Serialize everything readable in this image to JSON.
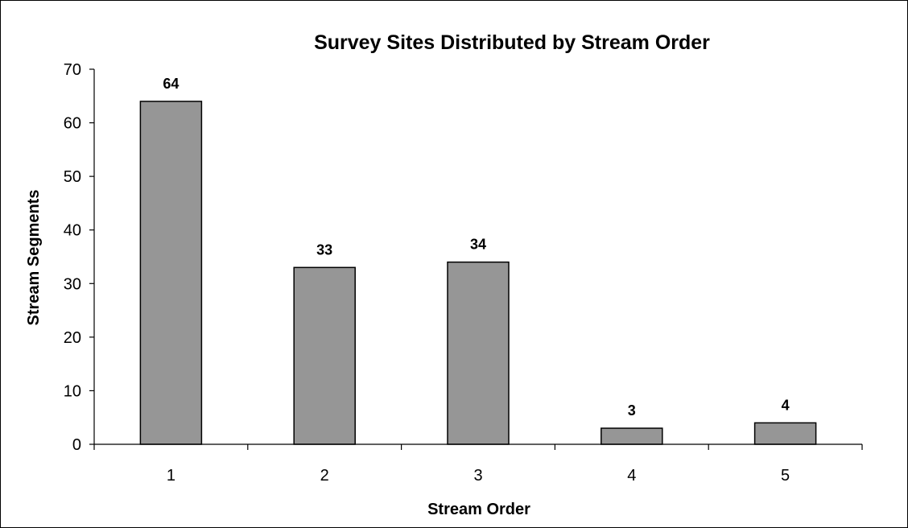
{
  "chart_data": {
    "type": "bar",
    "title": "Survey Sites Distributed by Stream Order",
    "xlabel": "Stream Order",
    "ylabel": "Stream Segments",
    "categories": [
      "1",
      "2",
      "3",
      "4",
      "5"
    ],
    "values": [
      64,
      33,
      34,
      3,
      4
    ],
    "data_labels": [
      "64",
      "33",
      "34",
      "3",
      "4"
    ],
    "ylim": [
      0,
      70
    ],
    "yticks": [
      0,
      10,
      20,
      30,
      40,
      50,
      60,
      70
    ],
    "grid": false,
    "legend": "none",
    "bar_color": "#969696",
    "bar_edge_color": "#000000"
  }
}
